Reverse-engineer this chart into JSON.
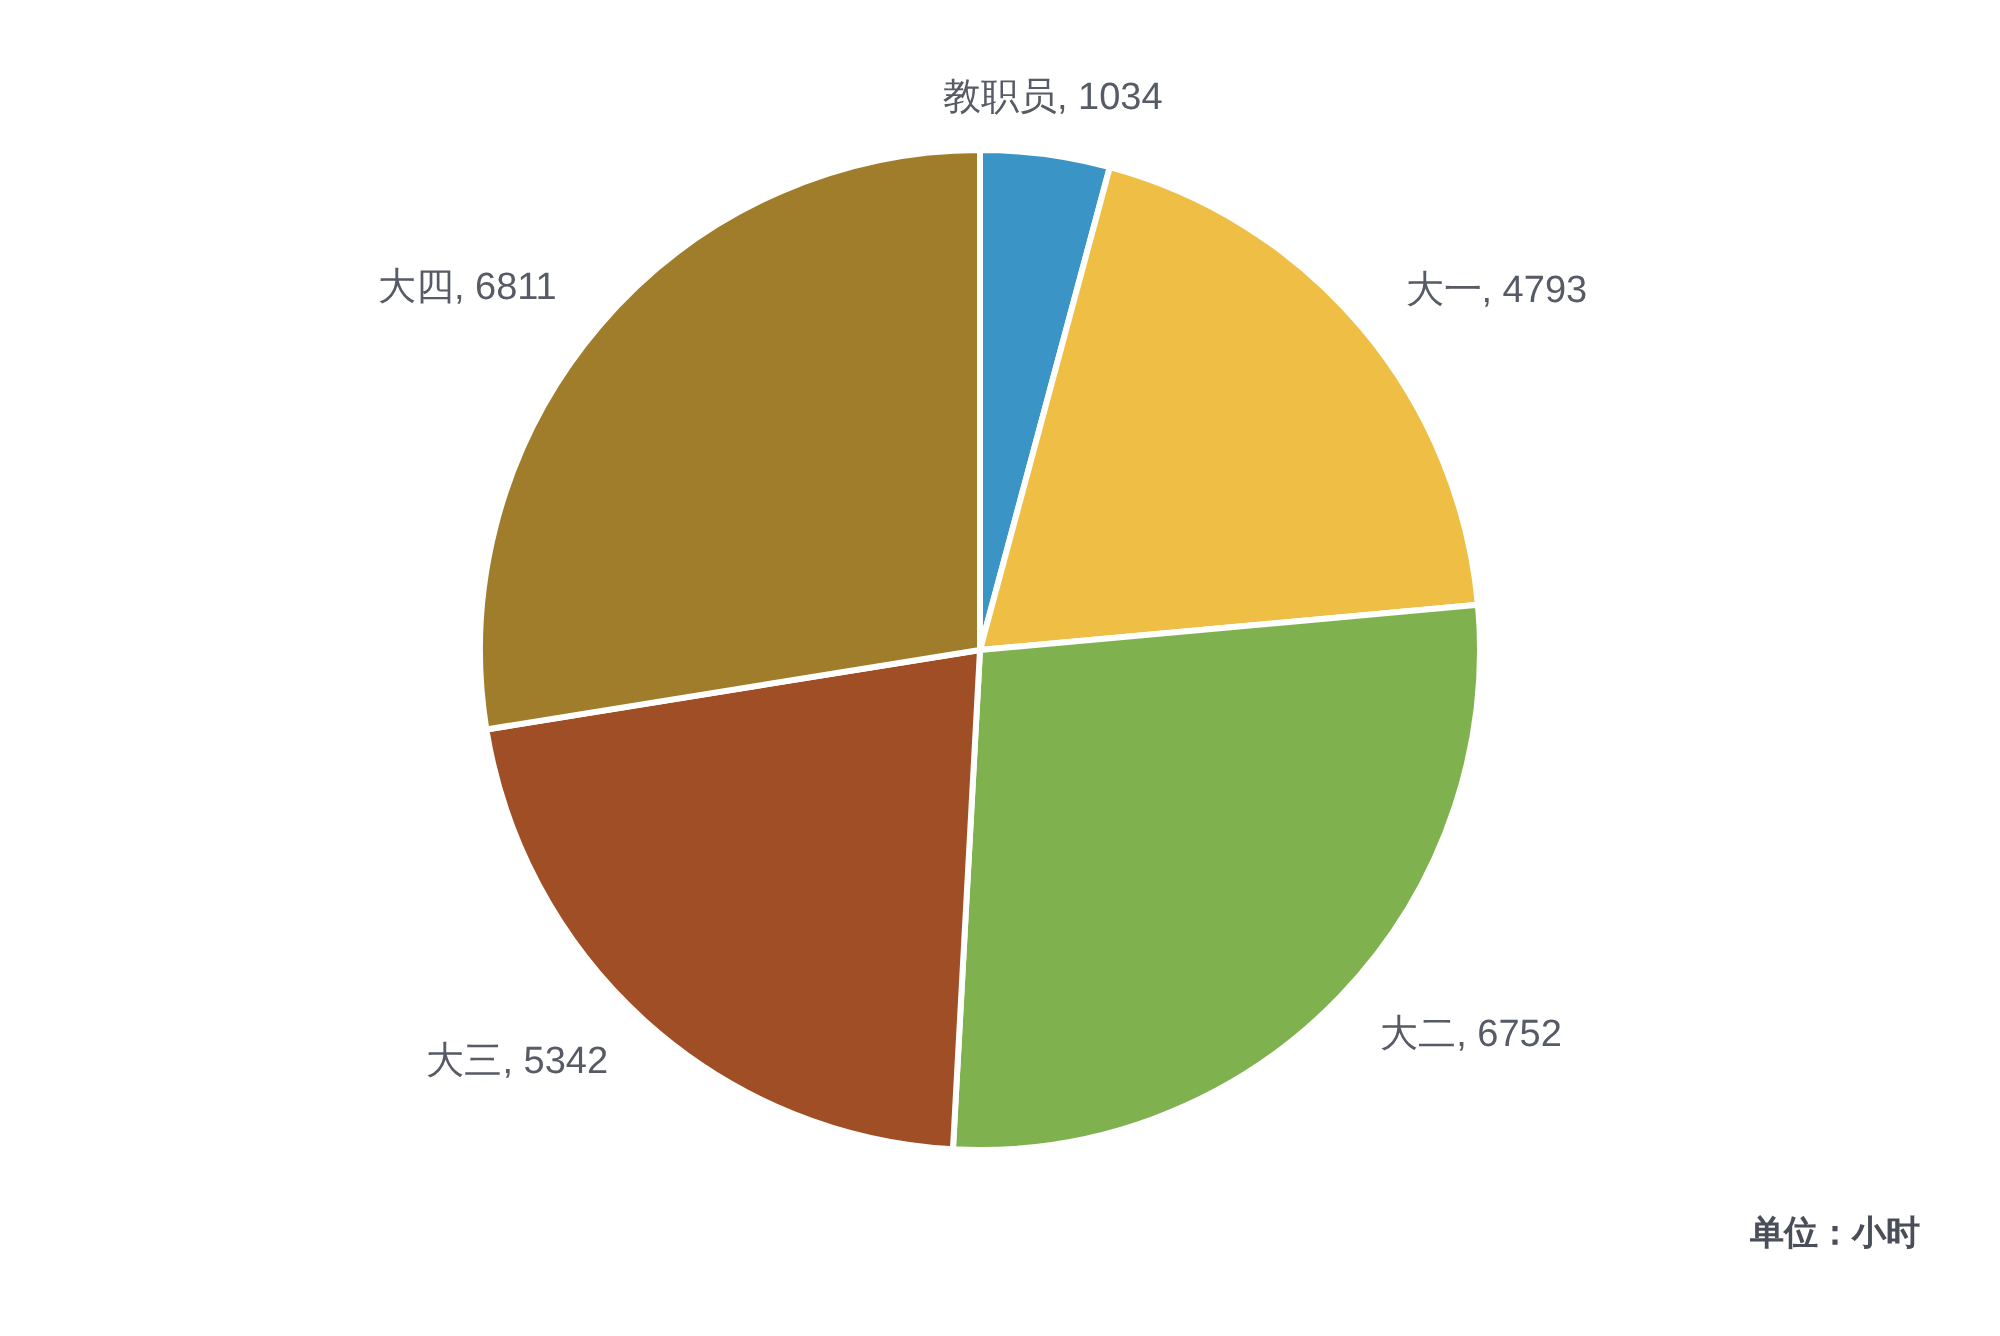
{
  "chart_data": {
    "type": "pie",
    "categories": [
      "教职员",
      "大一",
      "大二",
      "大三",
      "大四"
    ],
    "values": [
      1034,
      4793,
      6752,
      5342,
      6811
    ],
    "value_labels": [
      ", 1034",
      ", 4793",
      ", 6752",
      ", 5342",
      ", 6811"
    ],
    "colors": [
      "#3b94c6",
      "#efbf45",
      "#7fb24f",
      "#a04e26",
      "#a07d2b"
    ],
    "annotations": [
      "单位：小时"
    ]
  }
}
